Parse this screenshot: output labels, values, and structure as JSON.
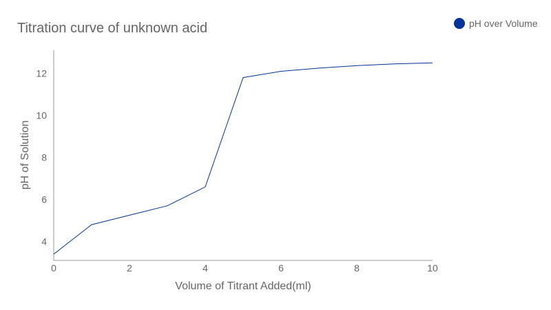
{
  "chart_data": {
    "type": "line",
    "title": "Titration curve of unknown acid",
    "xlabel": "Volume of Titrant Added(ml)",
    "ylabel": "pH of Solution",
    "xlim": [
      0,
      10
    ],
    "ylim": [
      3.1,
      13.1
    ],
    "xticks": [
      0,
      2,
      4,
      6,
      8,
      10
    ],
    "yticks": [
      4,
      6,
      8,
      10,
      12
    ],
    "grid": false,
    "legend_position": "top-right",
    "series": [
      {
        "name": "pH over Volume",
        "color": "#003399",
        "x": [
          0,
          1,
          2,
          3,
          4,
          5,
          6,
          7,
          8,
          9,
          10
        ],
        "y": [
          3.4,
          4.8,
          5.25,
          5.7,
          6.6,
          11.8,
          12.1,
          12.25,
          12.37,
          12.45,
          12.5
        ]
      }
    ]
  }
}
